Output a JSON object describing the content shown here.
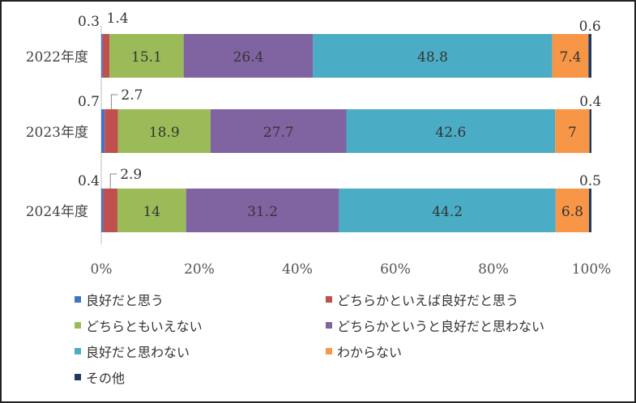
{
  "chart_data": {
    "type": "bar",
    "orientation": "horizontal",
    "stacked": true,
    "percent": true,
    "categories": [
      "2022年度",
      "2023年度",
      "2024年度"
    ],
    "series": [
      {
        "name": "良好だと思う",
        "color": "#4472C4",
        "values": [
          0.3,
          0.7,
          0.4
        ]
      },
      {
        "name": "どちらかといえば良好だと思う",
        "color": "#C0504D",
        "values": [
          1.4,
          2.7,
          2.9
        ]
      },
      {
        "name": "どちらともいえない",
        "color": "#9BBB59",
        "values": [
          15.1,
          18.9,
          14
        ]
      },
      {
        "name": "どちらかというと良好だと思わない",
        "color": "#8064A2",
        "values": [
          26.4,
          27.7,
          31.2
        ]
      },
      {
        "name": "良好だと思わない",
        "color": "#4BACC6",
        "values": [
          48.8,
          42.6,
          44.2
        ]
      },
      {
        "name": "わからない",
        "color": "#F79646",
        "values": [
          7.4,
          7,
          6.8
        ]
      },
      {
        "name": "その他",
        "color": "#1F3864",
        "values": [
          0.6,
          0.4,
          0.5
        ]
      }
    ],
    "xlim": [
      0,
      100
    ],
    "x_ticks": [
      "0%",
      "20%",
      "40%",
      "60%",
      "80%",
      "100%"
    ],
    "grid": false,
    "legend_position": "bottom"
  }
}
